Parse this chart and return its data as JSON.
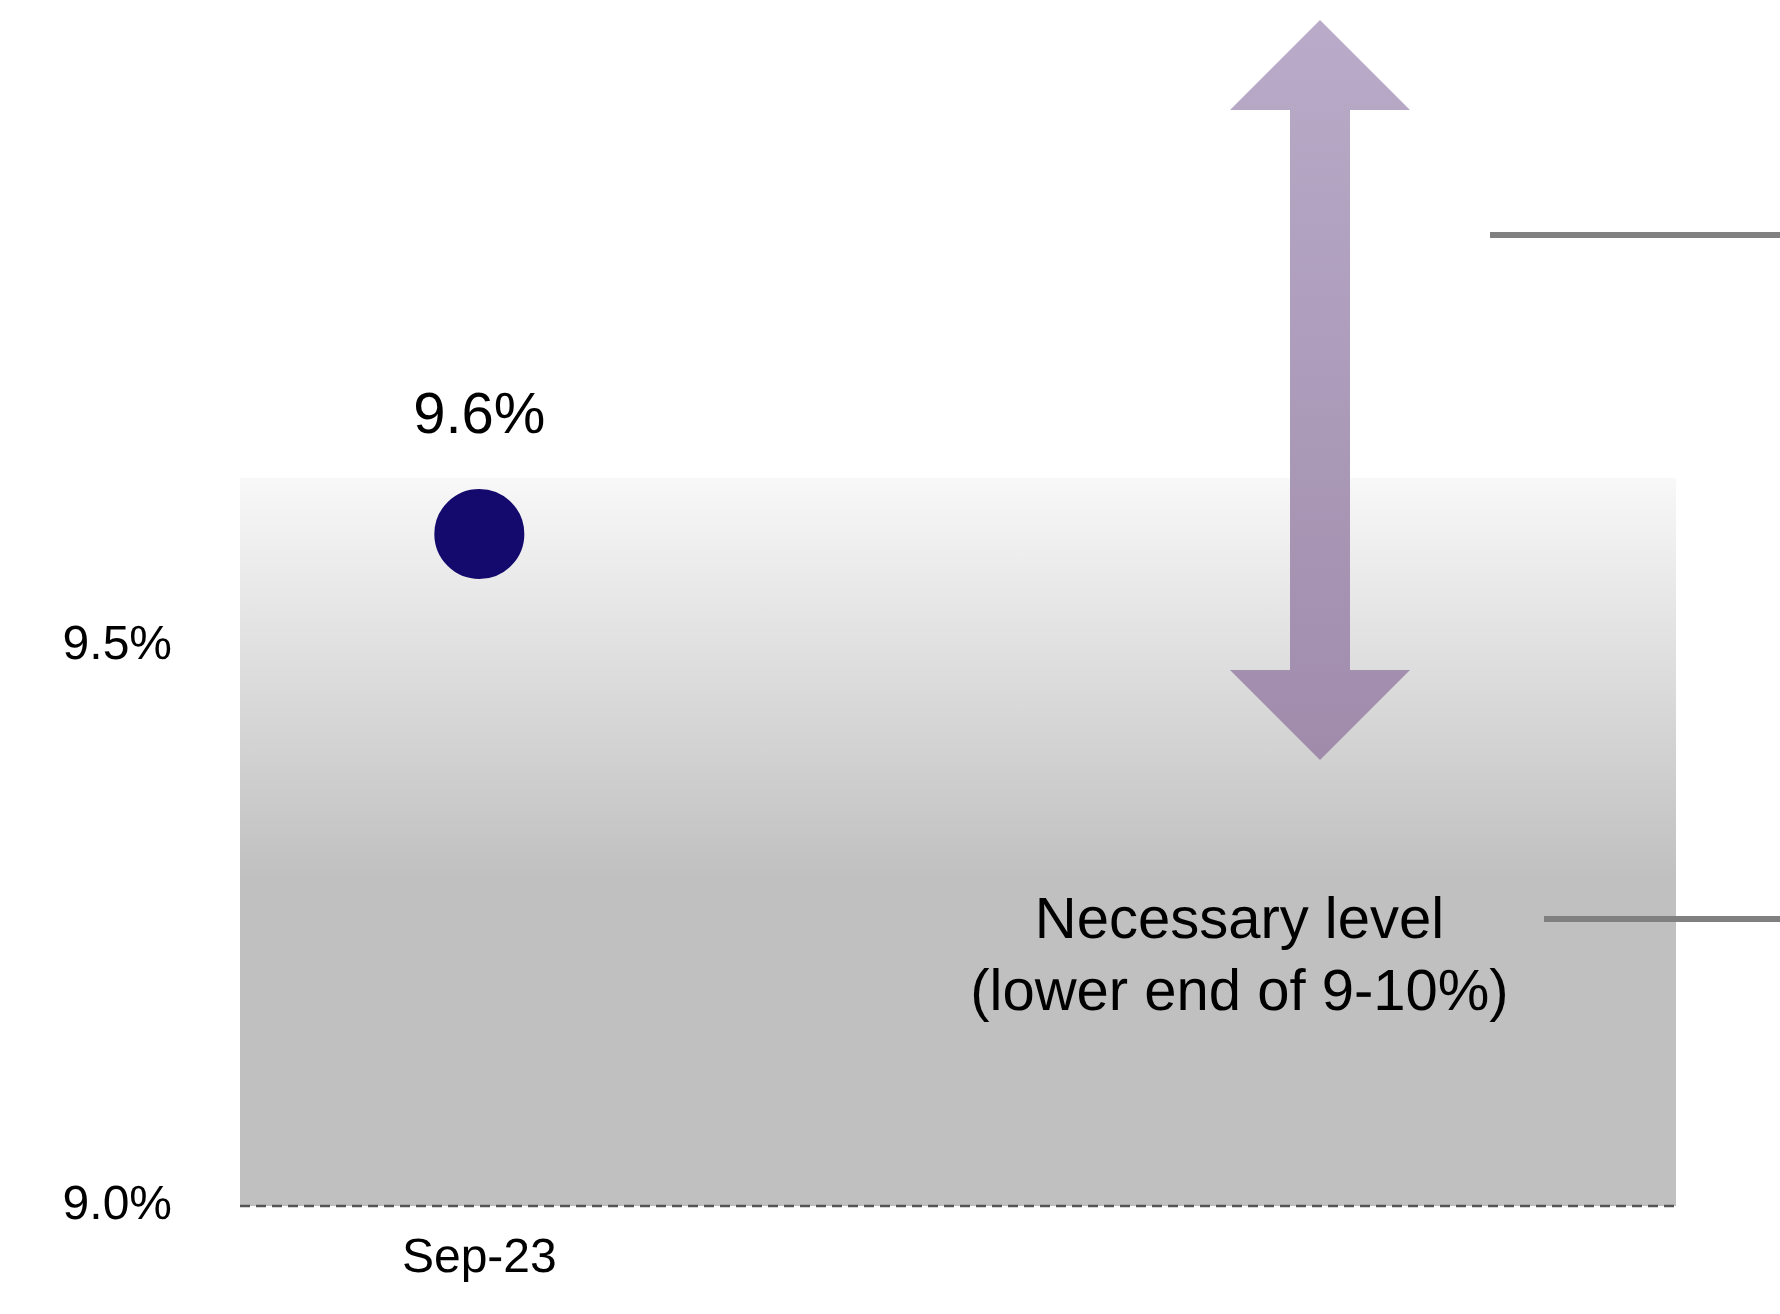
{
  "chart_data": {
    "type": "scatter",
    "categories": [
      "Sep-23",
      null,
      null
    ],
    "series": [
      {
        "color": "#140a6e",
        "values": [
          9.6,
          null,
          null
        ],
        "value_labels": [
          "9.6%",
          null,
          null
        ]
      }
    ],
    "ylim": [
      9.0,
      9.65
    ],
    "yticks": [
      {
        "value": 9.0,
        "label": "9.0%"
      },
      {
        "value": 9.5,
        "label": "9.5%"
      }
    ],
    "grid": false,
    "legend": false,
    "marker": "circle",
    "ref_lines": [
      {
        "axis": "y",
        "value": 9.0,
        "color": "#555555",
        "line_style": "dashed"
      }
    ],
    "bands": [
      {
        "axis": "y",
        "from": 9.0,
        "to": 9.65,
        "color": "#c0c0c0",
        "label": "Necessary level\n(lower end of 9-10%)"
      }
    ]
  }
}
